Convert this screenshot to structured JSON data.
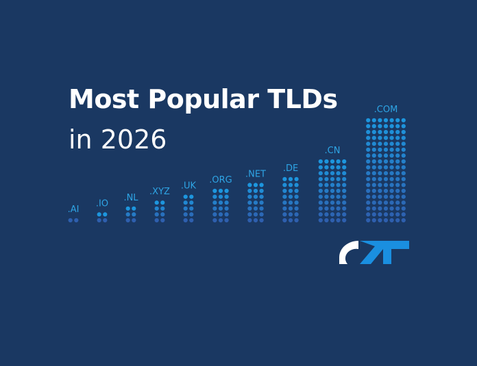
{
  "title": "Most Popular TLDs",
  "subtitle": "in 2026",
  "colors": {
    "background": "#1a3862",
    "label": "#2ea5e5",
    "dot_light": "#1aa0e6",
    "dot_dark": "#2e5fae",
    "logo_white": "#ffffff",
    "logo_blue": "#1a8fe0"
  },
  "logo_icon": "brand-logo-icon",
  "chart_data": {
    "type": "bar",
    "style": "dot-matrix",
    "categories": [
      ".AI",
      ".IO",
      ".NL",
      ".XYZ",
      ".UK",
      ".ORG",
      ".NET",
      ".DE",
      ".CN",
      ".COM"
    ],
    "series": [
      {
        "values_in_dot_rows": [
          1,
          2,
          3,
          4,
          5,
          6,
          7,
          8,
          11,
          18
        ],
        "columns_of_dots": [
          2,
          2,
          2,
          2,
          2,
          3,
          3,
          3,
          5,
          7
        ]
      }
    ]
  }
}
